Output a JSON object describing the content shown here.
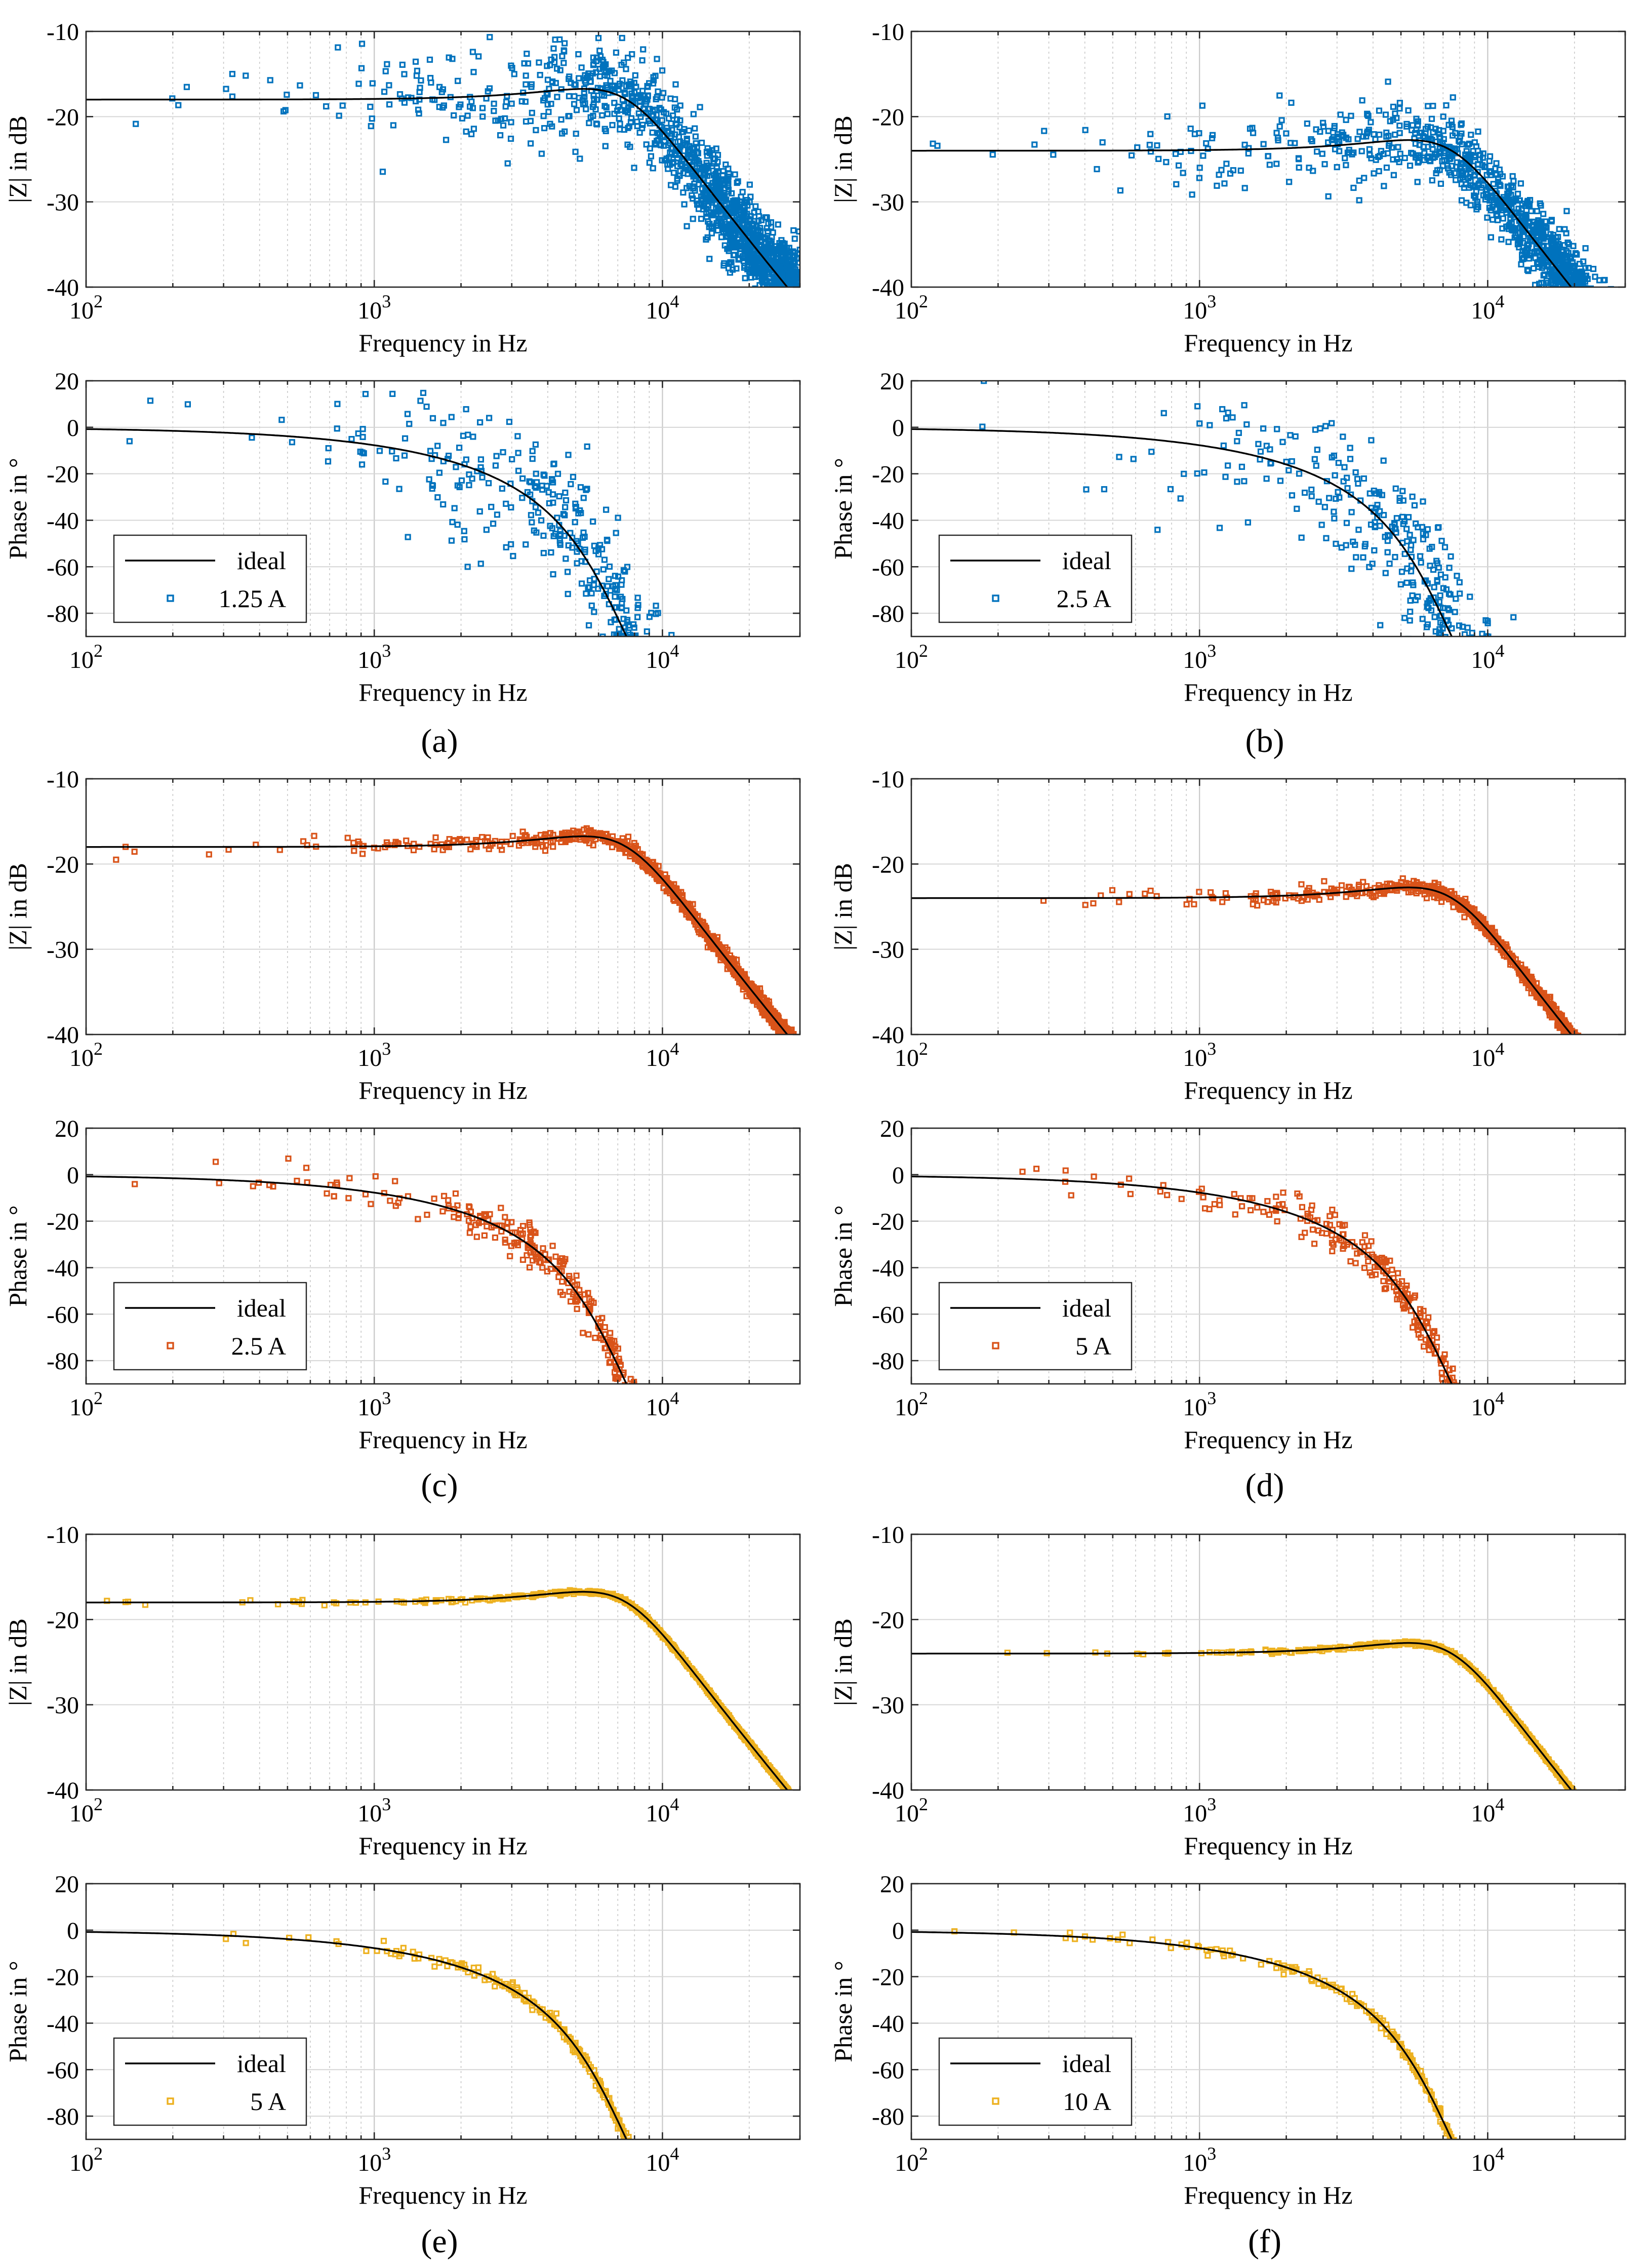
{
  "figure": {
    "captions": [
      "(a)",
      "(b)",
      "(c)",
      "(d)",
      "(e)",
      "(f)"
    ],
    "colors": {
      "blue": "#0072BD",
      "orange": "#D95319",
      "yellow": "#EDB120",
      "ideal": "#000000"
    }
  },
  "chart_data": [
    {
      "id": "a",
      "panel": "mag",
      "type": "scatter",
      "title": "",
      "xlabel": "Frequency in Hz",
      "ylabel": "|Z| in dB",
      "xscale": "log",
      "xlim": [
        100,
        30000
      ],
      "ylim": [
        -40,
        -10
      ],
      "yticks": [
        -10,
        -20,
        -30,
        -40
      ],
      "xtick_labels": [
        "10^2",
        "10^3",
        "10^4"
      ],
      "grid": true,
      "ideal": {
        "name": "ideal",
        "dc_db": -18.0,
        "fc": 7500,
        "q": 1.0
      },
      "series": [
        {
          "name": "1.25 A",
          "color": "#0072BD",
          "noise_db": 6.0,
          "points": 1500
        }
      ]
    },
    {
      "id": "a",
      "panel": "phase",
      "type": "scatter",
      "title": "",
      "xlabel": "Frequency in Hz",
      "ylabel": "Phase in °",
      "xscale": "log",
      "xlim": [
        100,
        30000
      ],
      "ylim": [
        -90,
        20
      ],
      "yticks": [
        20,
        0,
        -20,
        -40,
        -60,
        -80
      ],
      "xtick_labels": [
        "10^2",
        "10^3",
        "10^4"
      ],
      "grid": true,
      "ideal": {
        "name": "ideal",
        "fc": 7500,
        "q": 1.0
      },
      "series": [
        {
          "name": "1.25 A",
          "color": "#0072BD",
          "noise_deg": 16.0,
          "points": 1500
        }
      ],
      "legend": {
        "position": "bottom-left",
        "entries": [
          "ideal",
          "1.25 A"
        ]
      }
    },
    {
      "id": "b",
      "panel": "mag",
      "type": "scatter",
      "title": "",
      "xlabel": "Frequency in Hz",
      "ylabel": "|Z| in dB",
      "xscale": "log",
      "xlim": [
        100,
        30000
      ],
      "ylim": [
        -40,
        -10
      ],
      "yticks": [
        -10,
        -20,
        -30,
        -40
      ],
      "xtick_labels": [
        "10^2",
        "10^3",
        "10^4"
      ],
      "grid": true,
      "ideal": {
        "name": "ideal",
        "dc_db": -24.0,
        "fc": 7500,
        "q": 1.0
      },
      "series": [
        {
          "name": "2.5 A",
          "color": "#0072BD",
          "noise_db": 5.0,
          "points": 1500
        }
      ]
    },
    {
      "id": "b",
      "panel": "phase",
      "type": "scatter",
      "title": "",
      "xlabel": "Frequency in Hz",
      "ylabel": "Phase in °",
      "xscale": "log",
      "xlim": [
        100,
        30000
      ],
      "ylim": [
        -90,
        20
      ],
      "yticks": [
        20,
        0,
        -20,
        -40,
        -60,
        -80
      ],
      "xtick_labels": [
        "10^2",
        "10^3",
        "10^4"
      ],
      "grid": true,
      "ideal": {
        "name": "ideal",
        "fc": 7500,
        "q": 1.0
      },
      "series": [
        {
          "name": "2.5 A",
          "color": "#0072BD",
          "noise_deg": 16.0,
          "points": 1500
        }
      ],
      "legend": {
        "position": "bottom-left",
        "entries": [
          "ideal",
          "2.5 A"
        ]
      }
    },
    {
      "id": "c",
      "panel": "mag",
      "type": "scatter",
      "title": "",
      "xlabel": "Frequency in Hz",
      "ylabel": "|Z| in dB",
      "xscale": "log",
      "xlim": [
        100,
        30000
      ],
      "ylim": [
        -40,
        -10
      ],
      "yticks": [
        -10,
        -20,
        -30,
        -40
      ],
      "xtick_labels": [
        "10^2",
        "10^3",
        "10^4"
      ],
      "grid": true,
      "ideal": {
        "name": "ideal",
        "dc_db": -18.0,
        "fc": 7500,
        "q": 1.0
      },
      "series": [
        {
          "name": "2.5 A",
          "color": "#D95319",
          "noise_db": 1.0,
          "points": 1200
        }
      ]
    },
    {
      "id": "c",
      "panel": "phase",
      "type": "scatter",
      "title": "",
      "xlabel": "Frequency in Hz",
      "ylabel": "Phase in °",
      "xscale": "log",
      "xlim": [
        100,
        30000
      ],
      "ylim": [
        -90,
        20
      ],
      "yticks": [
        20,
        0,
        -20,
        -40,
        -60,
        -80
      ],
      "xtick_labels": [
        "10^2",
        "10^3",
        "10^4"
      ],
      "grid": true,
      "ideal": {
        "name": "ideal",
        "fc": 7500,
        "q": 1.0
      },
      "series": [
        {
          "name": "2.5 A",
          "color": "#D95319",
          "noise_deg": 4.0,
          "points": 1200
        }
      ],
      "legend": {
        "position": "bottom-left",
        "entries": [
          "ideal",
          "2.5 A"
        ]
      }
    },
    {
      "id": "d",
      "panel": "mag",
      "type": "scatter",
      "title": "",
      "xlabel": "Frequency in Hz",
      "ylabel": "|Z| in dB",
      "xscale": "log",
      "xlim": [
        100,
        30000
      ],
      "ylim": [
        -40,
        -10
      ],
      "yticks": [
        -10,
        -20,
        -30,
        -40
      ],
      "xtick_labels": [
        "10^2",
        "10^3",
        "10^4"
      ],
      "grid": true,
      "ideal": {
        "name": "ideal",
        "dc_db": -24.0,
        "fc": 7500,
        "q": 1.0
      },
      "series": [
        {
          "name": "5 A",
          "color": "#D95319",
          "noise_db": 0.9,
          "points": 1200
        }
      ]
    },
    {
      "id": "d",
      "panel": "phase",
      "type": "scatter",
      "title": "",
      "xlabel": "Frequency in Hz",
      "ylabel": "Phase in °",
      "xscale": "log",
      "xlim": [
        100,
        30000
      ],
      "ylim": [
        -90,
        20
      ],
      "yticks": [
        20,
        0,
        -20,
        -40,
        -60,
        -80
      ],
      "xtick_labels": [
        "10^2",
        "10^3",
        "10^4"
      ],
      "grid": true,
      "ideal": {
        "name": "ideal",
        "fc": 7500,
        "q": 1.0
      },
      "series": [
        {
          "name": "5 A",
          "color": "#D95319",
          "noise_deg": 4.0,
          "points": 1200
        }
      ],
      "legend": {
        "position": "bottom-left",
        "entries": [
          "ideal",
          "5 A"
        ]
      }
    },
    {
      "id": "e",
      "panel": "mag",
      "type": "scatter",
      "title": "",
      "xlabel": "Frequency in Hz",
      "ylabel": "|Z| in dB",
      "xscale": "log",
      "xlim": [
        100,
        30000
      ],
      "ylim": [
        -40,
        -10
      ],
      "yticks": [
        -10,
        -20,
        -30,
        -40
      ],
      "xtick_labels": [
        "10^2",
        "10^3",
        "10^4"
      ],
      "grid": true,
      "ideal": {
        "name": "ideal",
        "dc_db": -18.0,
        "fc": 7500,
        "q": 1.0
      },
      "series": [
        {
          "name": "5 A",
          "color": "#EDB120",
          "noise_db": 0.25,
          "points": 1100
        }
      ]
    },
    {
      "id": "e",
      "panel": "phase",
      "type": "scatter",
      "title": "",
      "xlabel": "Frequency in Hz",
      "ylabel": "Phase in °",
      "xscale": "log",
      "xlim": [
        100,
        30000
      ],
      "ylim": [
        -90,
        20
      ],
      "yticks": [
        20,
        0,
        -20,
        -40,
        -60,
        -80
      ],
      "xtick_labels": [
        "10^2",
        "10^3",
        "10^4"
      ],
      "grid": true,
      "ideal": {
        "name": "ideal",
        "fc": 7500,
        "q": 1.0
      },
      "series": [
        {
          "name": "5 A",
          "color": "#EDB120",
          "noise_deg": 1.2,
          "points": 1100
        }
      ],
      "legend": {
        "position": "bottom-left",
        "entries": [
          "ideal",
          "5 A"
        ]
      }
    },
    {
      "id": "f",
      "panel": "mag",
      "type": "scatter",
      "title": "",
      "xlabel": "Frequency in Hz",
      "ylabel": "|Z| in dB",
      "xscale": "log",
      "xlim": [
        100,
        30000
      ],
      "ylim": [
        -40,
        -10
      ],
      "yticks": [
        -10,
        -20,
        -30,
        -40
      ],
      "xtick_labels": [
        "10^2",
        "10^3",
        "10^4"
      ],
      "grid": true,
      "ideal": {
        "name": "ideal",
        "dc_db": -24.0,
        "fc": 7500,
        "q": 1.0
      },
      "series": [
        {
          "name": "10 A",
          "color": "#EDB120",
          "noise_db": 0.25,
          "points": 1100
        }
      ]
    },
    {
      "id": "f",
      "panel": "phase",
      "type": "scatter",
      "title": "",
      "xlabel": "Frequency in Hz",
      "ylabel": "Phase in °",
      "xscale": "log",
      "xlim": [
        100,
        30000
      ],
      "ylim": [
        -90,
        20
      ],
      "yticks": [
        20,
        0,
        -20,
        -40,
        -60,
        -80
      ],
      "xtick_labels": [
        "10^2",
        "10^3",
        "10^4"
      ],
      "grid": true,
      "ideal": {
        "name": "ideal",
        "fc": 7500,
        "q": 1.0
      },
      "series": [
        {
          "name": "10 A",
          "color": "#EDB120",
          "noise_deg": 1.2,
          "points": 1100
        }
      ],
      "legend": {
        "position": "bottom-left",
        "entries": [
          "ideal",
          "10 A"
        ]
      }
    }
  ]
}
